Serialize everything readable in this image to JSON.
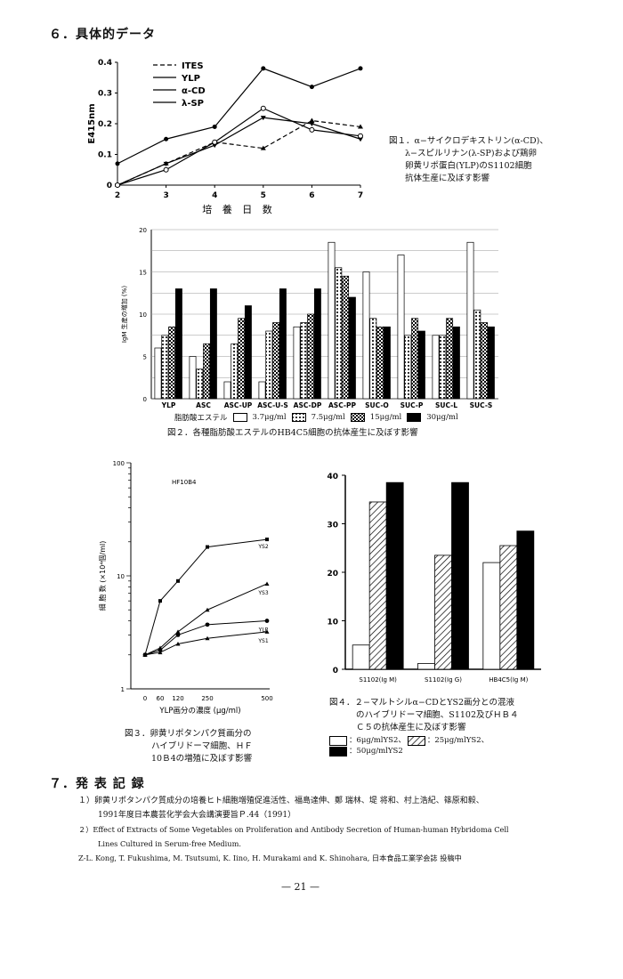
{
  "section6": {
    "title": "６．具体的データ"
  },
  "fig1": {
    "caption": [
      "図１．α−サイクロデキストリン(α-CD)、",
      "λ−スピルリナン(λ-SP)および鶏卵",
      "卵黄リポ蛋白(YLP)のS1102細胞",
      "抗体生産に及ぼす影響"
    ],
    "chart_data": {
      "type": "line",
      "ylabel": "E415nm",
      "xlabel": "培 養 日 数",
      "x": [
        2,
        3,
        4,
        5,
        6,
        7
      ],
      "ylim": [
        0,
        0.4
      ],
      "yticks": [
        "0",
        "0.1",
        "0.2",
        "0.3",
        "0.4"
      ],
      "series": [
        {
          "name": "ITES",
          "values": [
            0.0,
            0.07,
            0.14,
            0.12,
            0.21,
            0.19
          ],
          "style": "dashed"
        },
        {
          "name": "YLP",
          "values": [
            0.07,
            0.15,
            0.19,
            0.38,
            0.32,
            0.38
          ],
          "style": "solid"
        },
        {
          "name": "α-CD",
          "values": [
            0.0,
            0.07,
            0.13,
            0.22,
            0.2,
            0.15
          ],
          "style": "solid"
        },
        {
          "name": "λ-SP",
          "values": [
            0.0,
            0.05,
            0.14,
            0.25,
            0.18,
            0.16
          ],
          "style": "solid"
        }
      ]
    }
  },
  "fig2": {
    "caption": "図２．各種脂肪酸エステルのHB4C5細胞の抗体産生に及ぼす影響",
    "legend_label": "脂肪酸エステル",
    "legend": [
      "3.7μg/ml",
      "7.5μg/ml",
      "15μg/ml",
      "30μg/ml"
    ],
    "chart_data": {
      "type": "bar",
      "ylabel": "IgM 生産の増加 (%)",
      "ylim": [
        0,
        20
      ],
      "yticks": [
        "0",
        "5",
        "10",
        "15",
        "20"
      ],
      "categories": [
        "YLP",
        "ASC",
        "ASC-UP",
        "ASC-U-S",
        "ASC-DP",
        "ASC-PP",
        "SUC-O",
        "SUC-P",
        "SUC-L",
        "SUC-S"
      ],
      "series": [
        {
          "name": "3.7μg/ml",
          "values": [
            6,
            5,
            2,
            2,
            8.5,
            18.5,
            15,
            17,
            7.5,
            18.5
          ]
        },
        {
          "name": "7.5μg/ml",
          "values": [
            7.5,
            3.5,
            6.5,
            8,
            9,
            15.5,
            9.5,
            7.5,
            7.5,
            10.5
          ]
        },
        {
          "name": "15μg/ml",
          "values": [
            8.5,
            6.5,
            9.5,
            9,
            10,
            14.5,
            8.5,
            9.5,
            9.5,
            9
          ]
        },
        {
          "name": "30μg/ml",
          "values": [
            13,
            13,
            11,
            13,
            13,
            12,
            8.5,
            8,
            8.5,
            8.5
          ]
        }
      ]
    }
  },
  "fig3": {
    "inner_label": "HF10B4",
    "caption": [
      "図３．卵黄リポタンパク質画分の",
      "ハイブリドーマ細胞、ＨＦ",
      "10Ｂ4の増殖に及ぼす影響"
    ],
    "chart_data": {
      "type": "line",
      "ylabel": "細 胞 数 (×10⁴個/ml)",
      "xlabel": "YLP画分の濃度 (μg/ml)",
      "yscale": "log",
      "yticks": [
        "1",
        "10",
        "100"
      ],
      "x": [
        0,
        60,
        120,
        250,
        500
      ],
      "xticks": [
        "0",
        "60",
        "120",
        "250",
        "500"
      ],
      "series": [
        {
          "name": "YS2",
          "values": [
            2.0,
            6.0,
            9.0,
            18.0,
            21.0
          ]
        },
        {
          "name": "YS3",
          "values": [
            2.0,
            2.3,
            3.2,
            5.0,
            8.5
          ]
        },
        {
          "name": "YLP",
          "values": [
            2.0,
            2.2,
            3.0,
            3.7,
            4.0
          ]
        },
        {
          "name": "YS1",
          "values": [
            2.0,
            2.1,
            2.5,
            2.8,
            3.2
          ]
        }
      ]
    }
  },
  "fig4": {
    "caption": [
      "図４．２−マルトシルα−CDとYS2画分との混液",
      "のハイブリドーマ細胞、S1102及びＨＢ４",
      "Ｃ５の抗体産生に及ぼす影響"
    ],
    "legend": [
      "：6μg/mlYS2、",
      "：25μg/mlYS2、",
      "：50μg/mlYS2"
    ],
    "chart_data": {
      "type": "bar",
      "ylim": [
        0,
        40
      ],
      "yticks": [
        "0",
        "10",
        "20",
        "30",
        "40"
      ],
      "categories": [
        "S1102(Ig M)",
        "S1102(Ig G)",
        "HB4C5(Ig M)"
      ],
      "series": [
        {
          "name": "6μg/mlYS2",
          "values": [
            5,
            1.2,
            22
          ]
        },
        {
          "name": "25μg/mlYS2",
          "values": [
            34.5,
            23.5,
            25.5
          ]
        },
        {
          "name": "50μg/mlYS2",
          "values": [
            38.5,
            38.5,
            28.5
          ]
        }
      ]
    }
  },
  "section7": {
    "title": "７．発 表 記 録",
    "refs": [
      "１）卵黄リポタンパク質成分の培養ヒト細胞増殖促進活性、福島達伸、鄭 瑞林、堤 将和、村上浩紀、篠原和毅、",
      "1991年度日本農芸化学会大会講演要旨Ｐ.44（1991）",
      "２）Effect of Extracts of Some Vegetables on Proliferation and Antibody Secretion of Human-human Hybridoma Cell",
      "Lines Cultured in Serum-free Medium.",
      "Z-L. Kong, T. Fukushima, M. Tsutsumi, K. Iino, H. Murakami and K. Shinohara, 日本食品工業学会誌 投稿中"
    ]
  },
  "page_number": "— 21 —"
}
